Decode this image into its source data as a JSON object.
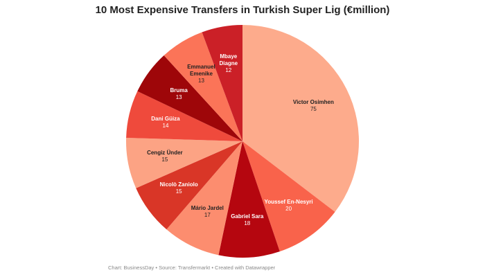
{
  "chart_data": {
    "type": "pie",
    "title": "10 Most Expensive Transfers in Turkish Super Lig (€million)",
    "source": "Chart: BusinessDay • Source: Transfermarkt • Created with Datawrapper",
    "categories": [
      "Victor Osimhen",
      "Youssef En-Nesyri",
      "Gabriel Sara",
      "Mário Jardel",
      "Nicolò Zaniolo",
      "Cengiz Ünder",
      "Dani Güiza",
      "Bruma",
      "Emmanuel Emenike",
      "Mbaye Diagne"
    ],
    "values": [
      75,
      20,
      18,
      17,
      15,
      15,
      14,
      13,
      13,
      12
    ],
    "colors": [
      "#fdab8c",
      "#f9634b",
      "#b5060f",
      "#fc8d6f",
      "#d93627",
      "#fca384",
      "#ef4a3c",
      "#9e0609",
      "#fb7458",
      "#cb2027"
    ]
  }
}
